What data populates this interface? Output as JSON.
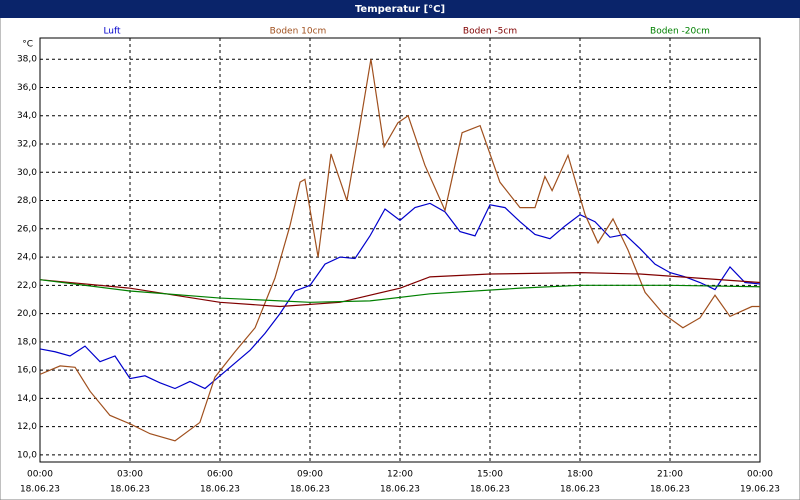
{
  "chart_data": {
    "type": "line",
    "title": "Temperatur [°C]",
    "y_unit": "°C",
    "xlim": [
      0,
      24
    ],
    "xticks": [
      {
        "value": 0,
        "label": "00:00"
      },
      {
        "value": 3,
        "label": "03:00"
      },
      {
        "value": 6,
        "label": "06:00"
      },
      {
        "value": 9,
        "label": "09:00"
      },
      {
        "value": 12,
        "label": "12:00"
      },
      {
        "value": 15,
        "label": "15:00"
      },
      {
        "value": 18,
        "label": "18:00"
      },
      {
        "value": 21,
        "label": "21:00"
      },
      {
        "value": 24,
        "label": "00:00"
      }
    ],
    "xtick_dates": [
      "18.06.23",
      "18.06.23",
      "18.06.23",
      "18.06.23",
      "18.06.23",
      "18.06.23",
      "18.06.23",
      "18.06.23",
      "19.06.23"
    ],
    "ylim": [
      9.5,
      39.5
    ],
    "yticks": [
      {
        "value": 10,
        "label": "10,0"
      },
      {
        "value": 12,
        "label": "12,0"
      },
      {
        "value": 14,
        "label": "14,0"
      },
      {
        "value": 16,
        "label": "16,0"
      },
      {
        "value": 18,
        "label": "18,0"
      },
      {
        "value": 20,
        "label": "20,0"
      },
      {
        "value": 22,
        "label": "22,0"
      },
      {
        "value": 24,
        "label": "24,0"
      },
      {
        "value": 26,
        "label": "26,0"
      },
      {
        "value": 28,
        "label": "28,0"
      },
      {
        "value": 30,
        "label": "30,0"
      },
      {
        "value": 32,
        "label": "32,0"
      },
      {
        "value": 34,
        "label": "34,0"
      },
      {
        "value": 36,
        "label": "36,0"
      },
      {
        "value": 38,
        "label": "38,0"
      }
    ],
    "grid": true,
    "series": [
      {
        "name": "Luft",
        "color": "#0000cc",
        "x": [
          0,
          0.5,
          1,
          1.5,
          2,
          2.5,
          3,
          3.5,
          4,
          4.5,
          5,
          5.5,
          6,
          6.5,
          7,
          7.5,
          8,
          8.5,
          9,
          9.5,
          10,
          10.5,
          11,
          11.5,
          12,
          12.5,
          13,
          13.5,
          14,
          14.5,
          15,
          15.5,
          16,
          16.5,
          17,
          17.5,
          18,
          18.5,
          19,
          19.5,
          20,
          20.5,
          21,
          21.5,
          22,
          22.5,
          23,
          23.5,
          24
        ],
        "values": [
          17.5,
          17.3,
          17.0,
          17.7,
          16.6,
          17.0,
          15.4,
          15.6,
          15.1,
          14.7,
          15.2,
          14.7,
          15.6,
          16.5,
          17.4,
          18.6,
          20.0,
          21.6,
          22.0,
          23.5,
          24.0,
          23.9,
          25.5,
          27.4,
          26.6,
          27.5,
          27.8,
          27.2,
          25.8,
          25.5,
          27.7,
          27.5,
          26.5,
          25.6,
          25.3,
          26.2,
          27.0,
          26.5,
          25.4,
          25.6,
          24.6,
          23.5,
          22.9,
          22.6,
          22.2,
          21.7,
          23.3,
          22.2,
          22.1
        ]
      },
      {
        "name": "Boden 10cm",
        "color": "#a0501e",
        "x": [
          0,
          0.67,
          1.17,
          1.67,
          2.33,
          3,
          3.67,
          4.5,
          5.33,
          5.83,
          6.5,
          7.17,
          7.83,
          8.33,
          8.67,
          8.83,
          9.27,
          9.7,
          10.23,
          10.6,
          11.03,
          11.47,
          11.93,
          12.27,
          12.83,
          13.5,
          14.07,
          14.67,
          15.33,
          16,
          16.5,
          16.83,
          17.07,
          17.6,
          18.17,
          18.6,
          19.1,
          19.6,
          20.17,
          20.77,
          21.43,
          22,
          22.5,
          23,
          23.73,
          24
        ],
        "values": [
          15.7,
          16.3,
          16.2,
          14.5,
          12.8,
          12.2,
          11.5,
          11.0,
          12.3,
          15.5,
          17.3,
          19.0,
          22.5,
          26.2,
          29.3,
          29.5,
          24.0,
          31.3,
          28.0,
          32.5,
          38.0,
          31.8,
          33.5,
          34.0,
          30.5,
          27.3,
          32.8,
          33.3,
          29.3,
          27.5,
          27.5,
          29.7,
          28.7,
          31.2,
          27.0,
          25.0,
          26.7,
          24.5,
          21.5,
          20.0,
          19.0,
          19.7,
          21.3,
          19.8,
          20.5,
          20.5
        ]
      },
      {
        "name": "Boden -5cm",
        "color": "#800000",
        "x": [
          0,
          3,
          6,
          8,
          10,
          12,
          13,
          15,
          18,
          20,
          22,
          24
        ],
        "values": [
          22.4,
          21.8,
          20.8,
          20.5,
          20.8,
          21.8,
          22.6,
          22.8,
          22.9,
          22.8,
          22.5,
          22.2
        ]
      },
      {
        "name": "Boden -20cm",
        "color": "#008000",
        "x": [
          0,
          3,
          6,
          9,
          11,
          13,
          16,
          18,
          21,
          24
        ],
        "values": [
          22.4,
          21.6,
          21.1,
          20.8,
          20.9,
          21.4,
          21.8,
          22.0,
          22.0,
          21.9
        ]
      }
    ]
  }
}
